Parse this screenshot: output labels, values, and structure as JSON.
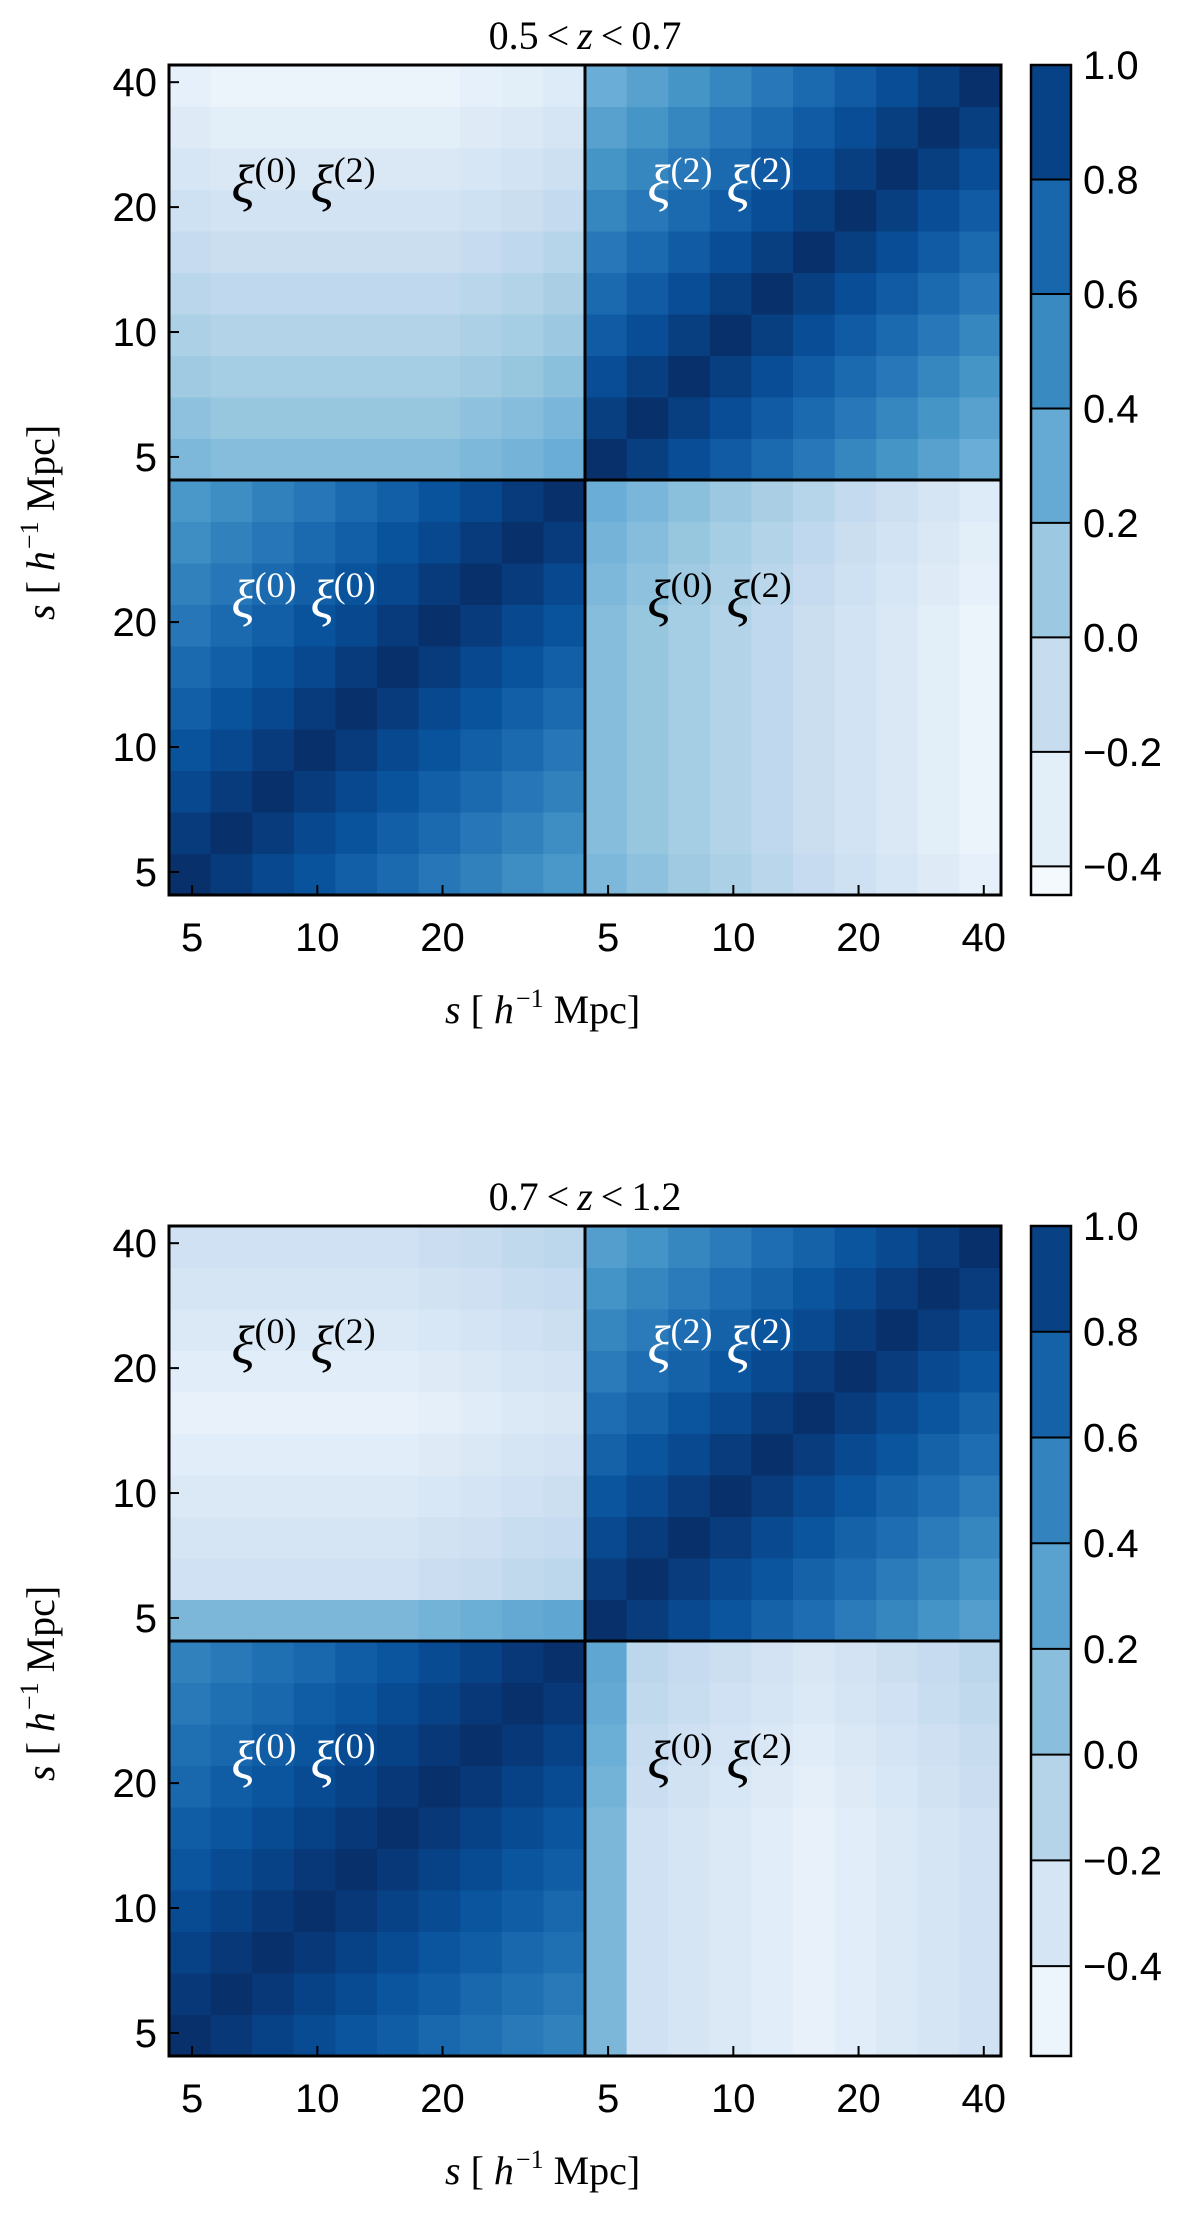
{
  "chart_data": [
    {
      "type": "heatmap",
      "title": [
        "0.5",
        "<",
        "z",
        "<",
        "0.7"
      ],
      "colormap": "Blues",
      "slim": [
        4.4,
        44
      ],
      "xticks": [
        [
          5,
          10,
          20
        ],
        [
          5,
          10,
          20,
          40
        ]
      ],
      "yticks": [
        [
          5,
          10,
          20
        ],
        [
          5,
          10,
          20,
          40
        ]
      ],
      "xlabel": [
        "s",
        "[",
        "h",
        "−1",
        "Mpc",
        "]"
      ],
      "ylabel": [
        "s",
        "[",
        "h",
        "−1",
        "Mpc",
        "]"
      ],
      "zlim": [
        -0.45,
        1.0
      ],
      "zticks": [
        {
          "value": -0.4,
          "label": "−0.4"
        },
        {
          "value": -0.2,
          "label": "−0.2"
        },
        {
          "value": 0,
          "label": "0.0"
        },
        0.2,
        0.4,
        0.6,
        0.8,
        {
          "value": 1.0,
          "label": "1.0"
        }
      ],
      "annotations": [
        {
          "terms": [
            {
              "base": "ξ",
              "sup": "(0)"
            },
            {
              "base": "ξ",
              "sup": "(2)"
            }
          ],
          "color": "#000000"
        },
        {
          "terms": [
            {
              "base": "ξ",
              "sup": "(2)"
            },
            {
              "base": "ξ",
              "sup": "(2)"
            }
          ],
          "color": "#ffffff"
        },
        {
          "terms": [
            {
              "base": "ξ",
              "sup": "(0)"
            },
            {
              "base": "ξ",
              "sup": "(0)"
            }
          ],
          "color": "#ffffff"
        },
        {
          "terms": [
            {
              "base": "ξ",
              "sup": "(0)"
            },
            {
              "base": "ξ",
              "sup": "(2)"
            }
          ],
          "color": "#000000"
        }
      ],
      "matrix": [
        [
          1,
          0.94,
          0.87,
          0.81,
          0.74,
          0.68,
          0.61,
          0.55,
          0.48,
          0.42,
          0.21,
          0.15,
          0.09,
          0.03,
          -0.03,
          -0.09,
          -0.15,
          -0.21,
          -0.27,
          -0.33
        ],
        [
          0.94,
          1,
          0.94,
          0.87,
          0.81,
          0.74,
          0.68,
          0.61,
          0.55,
          0.48,
          0.18,
          0.12,
          0.06,
          0,
          -0.06,
          -0.12,
          -0.18,
          -0.24,
          -0.3,
          -0.36
        ],
        [
          0.87,
          0.94,
          1,
          0.94,
          0.87,
          0.81,
          0.74,
          0.68,
          0.61,
          0.55,
          0.18,
          0.12,
          0.06,
          0,
          -0.06,
          -0.12,
          -0.18,
          -0.24,
          -0.3,
          -0.36
        ],
        [
          0.81,
          0.87,
          0.94,
          1,
          0.94,
          0.87,
          0.81,
          0.74,
          0.68,
          0.61,
          0.18,
          0.12,
          0.06,
          0,
          -0.06,
          -0.12,
          -0.18,
          -0.24,
          -0.3,
          -0.36
        ],
        [
          0.74,
          0.81,
          0.87,
          0.94,
          1,
          0.94,
          0.87,
          0.81,
          0.74,
          0.68,
          0.18,
          0.12,
          0.06,
          0,
          -0.06,
          -0.12,
          -0.18,
          -0.24,
          -0.3,
          -0.36
        ],
        [
          0.68,
          0.74,
          0.81,
          0.87,
          0.94,
          1,
          0.94,
          0.87,
          0.81,
          0.74,
          0.18,
          0.12,
          0.06,
          0,
          -0.06,
          -0.12,
          -0.18,
          -0.24,
          -0.3,
          -0.36
        ],
        [
          0.61,
          0.68,
          0.74,
          0.81,
          0.87,
          0.94,
          1,
          0.94,
          0.87,
          0.81,
          0.18,
          0.12,
          0.06,
          0,
          -0.06,
          -0.12,
          -0.18,
          -0.24,
          -0.3,
          -0.36
        ],
        [
          0.55,
          0.61,
          0.68,
          0.74,
          0.81,
          0.87,
          0.94,
          1,
          0.94,
          0.87,
          0.21,
          0.15,
          0.09,
          0.03,
          -0.03,
          -0.09,
          -0.15,
          -0.21,
          -0.27,
          -0.33
        ],
        [
          0.48,
          0.55,
          0.61,
          0.68,
          0.74,
          0.81,
          0.87,
          0.94,
          1,
          0.94,
          0.24,
          0.18,
          0.12,
          0.06,
          0,
          -0.06,
          -0.12,
          -0.18,
          -0.24,
          -0.3
        ],
        [
          0.42,
          0.48,
          0.55,
          0.61,
          0.68,
          0.74,
          0.81,
          0.87,
          0.94,
          1,
          0.28,
          0.22,
          0.16,
          0.1,
          0.04,
          -0.02,
          -0.08,
          -0.14,
          -0.2,
          -0.26
        ],
        [
          0.21,
          0.18,
          0.18,
          0.18,
          0.18,
          0.18,
          0.18,
          0.21,
          0.24,
          0.28,
          1,
          0.92,
          0.84,
          0.76,
          0.68,
          0.6,
          0.52,
          0.44,
          0.36,
          0.28
        ],
        [
          0.15,
          0.12,
          0.12,
          0.12,
          0.12,
          0.12,
          0.12,
          0.15,
          0.18,
          0.22,
          0.92,
          1,
          0.92,
          0.84,
          0.76,
          0.68,
          0.6,
          0.52,
          0.44,
          0.36
        ],
        [
          0.09,
          0.06,
          0.06,
          0.06,
          0.06,
          0.06,
          0.06,
          0.09,
          0.12,
          0.16,
          0.84,
          0.92,
          1,
          0.92,
          0.84,
          0.76,
          0.68,
          0.6,
          0.52,
          0.44
        ],
        [
          0.03,
          0,
          0,
          0,
          0,
          0,
          0,
          0.03,
          0.06,
          0.1,
          0.76,
          0.84,
          0.92,
          1,
          0.92,
          0.84,
          0.76,
          0.68,
          0.6,
          0.52
        ],
        [
          -0.03,
          -0.06,
          -0.06,
          -0.06,
          -0.06,
          -0.06,
          -0.06,
          -0.03,
          0,
          0.04,
          0.68,
          0.76,
          0.84,
          0.92,
          1,
          0.92,
          0.84,
          0.76,
          0.68,
          0.6
        ],
        [
          -0.09,
          -0.12,
          -0.12,
          -0.12,
          -0.12,
          -0.12,
          -0.12,
          -0.09,
          -0.06,
          -0.02,
          0.6,
          0.68,
          0.76,
          0.84,
          0.92,
          1,
          0.92,
          0.84,
          0.76,
          0.68
        ],
        [
          -0.15,
          -0.18,
          -0.18,
          -0.18,
          -0.18,
          -0.18,
          -0.18,
          -0.15,
          -0.12,
          -0.08,
          0.52,
          0.6,
          0.68,
          0.76,
          0.84,
          0.92,
          1,
          0.92,
          0.84,
          0.76
        ],
        [
          -0.21,
          -0.24,
          -0.24,
          -0.24,
          -0.24,
          -0.24,
          -0.24,
          -0.21,
          -0.18,
          -0.14,
          0.44,
          0.52,
          0.6,
          0.68,
          0.76,
          0.84,
          0.92,
          1,
          0.92,
          0.84
        ],
        [
          -0.27,
          -0.3,
          -0.3,
          -0.3,
          -0.3,
          -0.3,
          -0.3,
          -0.27,
          -0.24,
          -0.2,
          0.36,
          0.44,
          0.52,
          0.6,
          0.68,
          0.76,
          0.84,
          0.92,
          1,
          0.92
        ],
        [
          -0.33,
          -0.36,
          -0.36,
          -0.36,
          -0.36,
          -0.36,
          -0.36,
          -0.33,
          -0.3,
          -0.26,
          0.28,
          0.36,
          0.44,
          0.52,
          0.6,
          0.68,
          0.76,
          0.84,
          0.92,
          1
        ]
      ]
    },
    {
      "type": "heatmap",
      "title": [
        "0.7",
        "<",
        "z",
        "<",
        "1.2"
      ],
      "colormap": "Blues",
      "slim": [
        4.4,
        44
      ],
      "xticks": [
        [
          5,
          10,
          20
        ],
        [
          5,
          10,
          20,
          40
        ]
      ],
      "yticks": [
        [
          5,
          10,
          20
        ],
        [
          5,
          10,
          20,
          40
        ]
      ],
      "xlabel": [
        "s",
        "[",
        "h",
        "−1",
        "Mpc",
        "]"
      ],
      "ylabel": [
        "s",
        "[",
        "h",
        "−1",
        "Mpc",
        "]"
      ],
      "zlim": [
        -0.57,
        1.0
      ],
      "zticks": [
        {
          "value": -0.4,
          "label": "−0.4"
        },
        {
          "value": -0.2,
          "label": "−0.2"
        },
        {
          "value": 0,
          "label": "0.0"
        },
        0.2,
        0.4,
        0.6,
        0.8,
        {
          "value": 1.0,
          "label": "1.0"
        }
      ],
      "annotations": [
        {
          "terms": [
            {
              "base": "ξ",
              "sup": "(0)"
            },
            {
              "base": "ξ",
              "sup": "(2)"
            }
          ],
          "color": "#000000"
        },
        {
          "terms": [
            {
              "base": "ξ",
              "sup": "(2)"
            },
            {
              "base": "ξ",
              "sup": "(2)"
            }
          ],
          "color": "#ffffff"
        },
        {
          "terms": [
            {
              "base": "ξ",
              "sup": "(0)"
            },
            {
              "base": "ξ",
              "sup": "(0)"
            }
          ],
          "color": "#ffffff"
        },
        {
          "terms": [
            {
              "base": "ξ",
              "sup": "(0)"
            },
            {
              "base": "ξ",
              "sup": "(2)"
            }
          ],
          "color": "#000000"
        }
      ],
      "matrix": [
        [
          1,
          0.95,
          0.89,
          0.84,
          0.78,
          0.73,
          0.67,
          0.62,
          0.56,
          0.51,
          0.15,
          -0.25,
          -0.3,
          -0.35,
          -0.4,
          -0.45,
          -0.4,
          -0.35,
          -0.3,
          -0.25
        ],
        [
          0.95,
          1,
          0.95,
          0.89,
          0.84,
          0.78,
          0.73,
          0.67,
          0.62,
          0.56,
          0.15,
          -0.25,
          -0.3,
          -0.35,
          -0.4,
          -0.45,
          -0.4,
          -0.35,
          -0.3,
          -0.25
        ],
        [
          0.89,
          0.95,
          1,
          0.95,
          0.89,
          0.84,
          0.78,
          0.73,
          0.67,
          0.62,
          0.15,
          -0.25,
          -0.3,
          -0.35,
          -0.4,
          -0.45,
          -0.4,
          -0.35,
          -0.3,
          -0.25
        ],
        [
          0.84,
          0.89,
          0.95,
          1,
          0.95,
          0.89,
          0.84,
          0.78,
          0.73,
          0.67,
          0.15,
          -0.25,
          -0.3,
          -0.35,
          -0.4,
          -0.45,
          -0.4,
          -0.35,
          -0.3,
          -0.25
        ],
        [
          0.78,
          0.84,
          0.89,
          0.95,
          1,
          0.95,
          0.89,
          0.84,
          0.78,
          0.73,
          0.15,
          -0.25,
          -0.3,
          -0.35,
          -0.4,
          -0.45,
          -0.4,
          -0.35,
          -0.3,
          -0.25
        ],
        [
          0.73,
          0.78,
          0.84,
          0.89,
          0.95,
          1,
          0.95,
          0.89,
          0.84,
          0.78,
          0.15,
          -0.25,
          -0.3,
          -0.35,
          -0.4,
          -0.45,
          -0.4,
          -0.35,
          -0.3,
          -0.25
        ],
        [
          0.67,
          0.73,
          0.78,
          0.84,
          0.89,
          0.95,
          1,
          0.95,
          0.89,
          0.84,
          0.18,
          -0.22,
          -0.27,
          -0.32,
          -0.37,
          -0.42,
          -0.37,
          -0.32,
          -0.27,
          -0.22
        ],
        [
          0.62,
          0.67,
          0.73,
          0.78,
          0.84,
          0.89,
          0.95,
          1,
          0.95,
          0.89,
          0.21,
          -0.19,
          -0.24,
          -0.29,
          -0.34,
          -0.39,
          -0.34,
          -0.29,
          -0.24,
          -0.19
        ],
        [
          0.56,
          0.62,
          0.67,
          0.73,
          0.78,
          0.84,
          0.89,
          0.95,
          1,
          0.95,
          0.25,
          -0.15,
          -0.2,
          -0.25,
          -0.3,
          -0.35,
          -0.3,
          -0.25,
          -0.2,
          -0.15
        ],
        [
          0.51,
          0.56,
          0.62,
          0.67,
          0.73,
          0.78,
          0.84,
          0.89,
          0.95,
          1,
          0.27,
          -0.13,
          -0.18,
          -0.23,
          -0.28,
          -0.33,
          -0.28,
          -0.23,
          -0.18,
          -0.13
        ],
        [
          0.15,
          0.15,
          0.15,
          0.15,
          0.15,
          0.15,
          0.18,
          0.21,
          0.25,
          0.27,
          1,
          0.93,
          0.85,
          0.78,
          0.7,
          0.63,
          0.55,
          0.48,
          0.4,
          0.33
        ],
        [
          -0.25,
          -0.25,
          -0.25,
          -0.25,
          -0.25,
          -0.25,
          -0.22,
          -0.19,
          -0.15,
          -0.13,
          0.93,
          1,
          0.93,
          0.85,
          0.78,
          0.7,
          0.63,
          0.55,
          0.48,
          0.4
        ],
        [
          -0.3,
          -0.3,
          -0.3,
          -0.3,
          -0.3,
          -0.3,
          -0.27,
          -0.24,
          -0.2,
          -0.18,
          0.85,
          0.93,
          1,
          0.93,
          0.85,
          0.78,
          0.7,
          0.63,
          0.55,
          0.48
        ],
        [
          -0.35,
          -0.35,
          -0.35,
          -0.35,
          -0.35,
          -0.35,
          -0.32,
          -0.29,
          -0.25,
          -0.23,
          0.78,
          0.85,
          0.93,
          1,
          0.93,
          0.85,
          0.78,
          0.7,
          0.63,
          0.55
        ],
        [
          -0.4,
          -0.4,
          -0.4,
          -0.4,
          -0.4,
          -0.4,
          -0.37,
          -0.34,
          -0.3,
          -0.28,
          0.7,
          0.78,
          0.85,
          0.93,
          1,
          0.93,
          0.85,
          0.78,
          0.7,
          0.63
        ],
        [
          -0.45,
          -0.45,
          -0.45,
          -0.45,
          -0.45,
          -0.45,
          -0.42,
          -0.39,
          -0.35,
          -0.33,
          0.63,
          0.7,
          0.78,
          0.85,
          0.93,
          1,
          0.93,
          0.85,
          0.78,
          0.7
        ],
        [
          -0.4,
          -0.4,
          -0.4,
          -0.4,
          -0.4,
          -0.4,
          -0.37,
          -0.34,
          -0.3,
          -0.28,
          0.55,
          0.63,
          0.7,
          0.78,
          0.85,
          0.93,
          1,
          0.93,
          0.85,
          0.78
        ],
        [
          -0.35,
          -0.35,
          -0.35,
          -0.35,
          -0.35,
          -0.35,
          -0.32,
          -0.29,
          -0.25,
          -0.23,
          0.48,
          0.55,
          0.63,
          0.7,
          0.78,
          0.85,
          0.93,
          1,
          0.93,
          0.85
        ],
        [
          -0.3,
          -0.3,
          -0.3,
          -0.3,
          -0.3,
          -0.3,
          -0.27,
          -0.24,
          -0.2,
          -0.18,
          0.4,
          0.48,
          0.55,
          0.63,
          0.7,
          0.78,
          0.85,
          0.93,
          1,
          0.93
        ],
        [
          -0.25,
          -0.25,
          -0.25,
          -0.25,
          -0.25,
          -0.25,
          -0.22,
          -0.19,
          -0.15,
          -0.13,
          0.33,
          0.4,
          0.48,
          0.55,
          0.63,
          0.7,
          0.78,
          0.85,
          0.93,
          1
        ]
      ]
    }
  ]
}
